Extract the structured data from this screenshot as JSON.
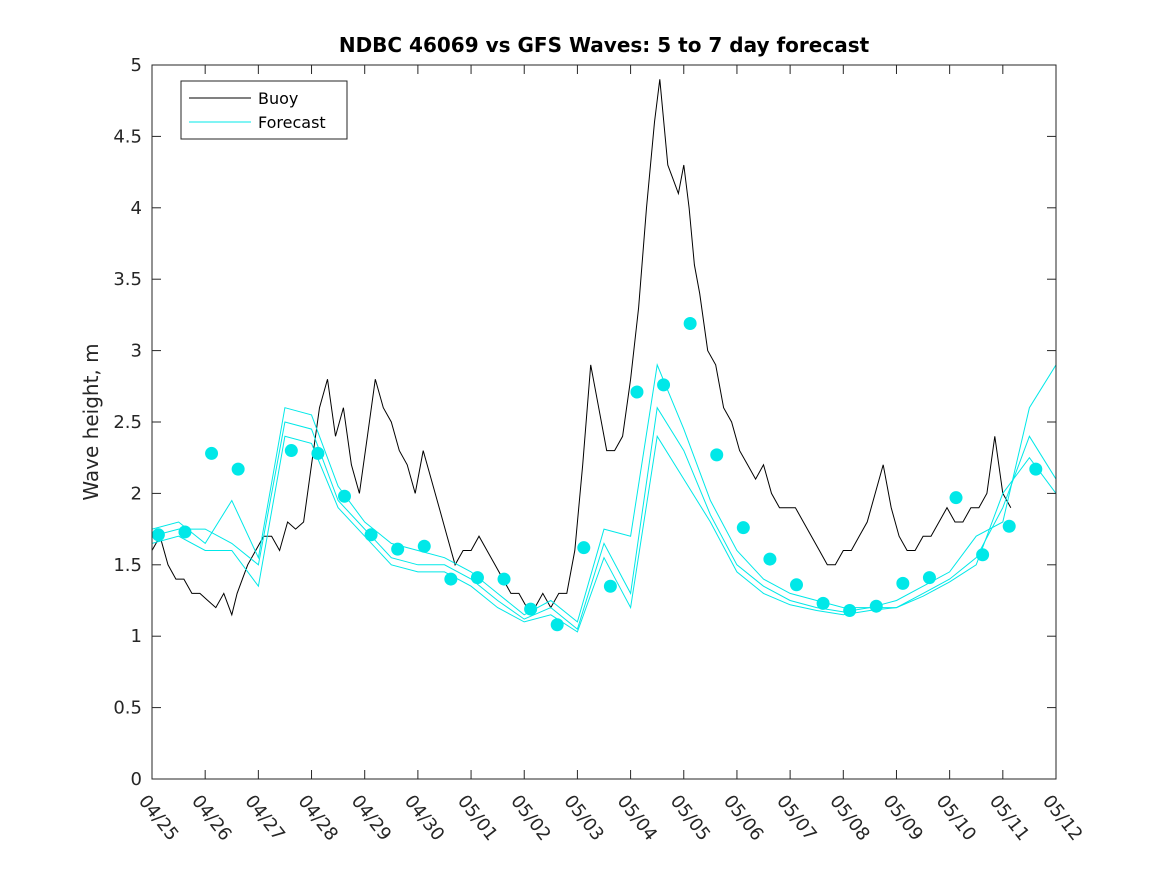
{
  "chart_data": {
    "type": "line",
    "title": "NDBC 46069 vs GFS Waves: 5 to 7 day forecast",
    "xlabel": "",
    "ylabel": "Wave height, m",
    "ylim": [
      0,
      5
    ],
    "yticks": [
      0,
      0.5,
      1,
      1.5,
      2,
      2.5,
      3,
      3.5,
      4,
      4.5,
      5
    ],
    "ytick_labels": [
      "0",
      "0.5",
      "1",
      "1.5",
      "2",
      "2.5",
      "3",
      "3.5",
      "4",
      "4.5",
      "5"
    ],
    "xlim": [
      0,
      17
    ],
    "x_units": "days since 04/25",
    "xtick_labels": [
      "04/25",
      "04/26",
      "04/27",
      "04/28",
      "04/29",
      "04/30",
      "05/01",
      "05/02",
      "05/03",
      "05/04",
      "05/05",
      "05/06",
      "05/07",
      "05/08",
      "05/09",
      "05/10",
      "05/11",
      "05/12"
    ],
    "grid": false,
    "legend": {
      "position": "top-left",
      "entries": [
        "Buoy",
        "Forecast"
      ]
    },
    "colors": {
      "buoy": "#000000",
      "forecast": "#00e8e8",
      "axes": "#262626"
    },
    "series": [
      {
        "name": "Buoy",
        "x": [
          0,
          0.15,
          0.3,
          0.45,
          0.6,
          0.75,
          0.9,
          1.05,
          1.2,
          1.35,
          1.5,
          1.6,
          1.7,
          1.8,
          1.95,
          2.1,
          2.25,
          2.4,
          2.55,
          2.7,
          2.85,
          3.0,
          3.15,
          3.3,
          3.45,
          3.6,
          3.75,
          3.9,
          4.05,
          4.2,
          4.35,
          4.5,
          4.65,
          4.8,
          4.95,
          5.1,
          5.25,
          5.4,
          5.55,
          5.7,
          5.85,
          6.0,
          6.15,
          6.3,
          6.45,
          6.6,
          6.75,
          6.9,
          7.05,
          7.2,
          7.35,
          7.5,
          7.65,
          7.8,
          7.95,
          8.1,
          8.25,
          8.4,
          8.55,
          8.7,
          8.85,
          9.0,
          9.15,
          9.3,
          9.45,
          9.55,
          9.7,
          9.8,
          9.9,
          10.0,
          10.1,
          10.2,
          10.3,
          10.45,
          10.6,
          10.75,
          10.9,
          11.05,
          11.2,
          11.35,
          11.5,
          11.65,
          11.8,
          11.95,
          12.1,
          12.25,
          12.4,
          12.55,
          12.7,
          12.85,
          13.0,
          13.15,
          13.3,
          13.45,
          13.6,
          13.75,
          13.9,
          14.05,
          14.2,
          14.35,
          14.5,
          14.65,
          14.8,
          14.95,
          15.1,
          15.25,
          15.4,
          15.55,
          15.7,
          15.85,
          16.0,
          16.15
        ],
        "y": [
          1.6,
          1.7,
          1.5,
          1.4,
          1.4,
          1.3,
          1.3,
          1.25,
          1.2,
          1.3,
          1.15,
          1.3,
          1.4,
          1.5,
          1.6,
          1.7,
          1.7,
          1.6,
          1.8,
          1.75,
          1.8,
          2.2,
          2.6,
          2.8,
          2.4,
          2.6,
          2.2,
          2.0,
          2.4,
          2.8,
          2.6,
          2.5,
          2.3,
          2.2,
          2.0,
          2.3,
          2.1,
          1.9,
          1.7,
          1.5,
          1.6,
          1.6,
          1.7,
          1.6,
          1.5,
          1.4,
          1.3,
          1.3,
          1.2,
          1.2,
          1.3,
          1.2,
          1.3,
          1.3,
          1.6,
          2.2,
          2.9,
          2.6,
          2.3,
          2.3,
          2.4,
          2.8,
          3.3,
          4.0,
          4.6,
          4.9,
          4.3,
          4.2,
          4.1,
          4.3,
          4.0,
          3.6,
          3.4,
          3.0,
          2.9,
          2.6,
          2.5,
          2.3,
          2.2,
          2.1,
          2.2,
          2.0,
          1.9,
          1.9,
          1.9,
          1.8,
          1.7,
          1.6,
          1.5,
          1.5,
          1.6,
          1.6,
          1.7,
          1.8,
          2.0,
          2.2,
          1.9,
          1.7,
          1.6,
          1.6,
          1.7,
          1.7,
          1.8,
          1.9,
          1.8,
          1.8,
          1.9,
          1.9,
          2.0,
          2.4,
          2.0,
          1.9
        ]
      },
      {
        "name": "Forecast",
        "x": [
          0,
          0.5,
          1,
          1.5,
          2,
          2.5,
          3,
          3.5,
          4,
          4.5,
          5,
          5.5,
          6,
          6.5,
          7,
          7.5,
          8,
          8.5,
          9,
          9.5,
          10,
          10.5,
          11,
          11.5,
          12,
          12.5,
          13,
          13.5,
          14,
          14.5,
          15,
          15.5,
          16,
          16.5,
          17
        ],
        "y": [
          1.75,
          1.8,
          1.65,
          1.95,
          1.55,
          2.6,
          2.55,
          2.05,
          1.8,
          1.65,
          1.6,
          1.55,
          1.45,
          1.3,
          1.15,
          1.25,
          1.1,
          1.75,
          1.7,
          2.9,
          2.45,
          1.95,
          1.6,
          1.4,
          1.3,
          1.25,
          1.2,
          1.2,
          1.25,
          1.35,
          1.45,
          1.7,
          1.8,
          2.6,
          2.9
        ]
      },
      {
        "name": "Forecast",
        "x": [
          0,
          0.5,
          1,
          1.5,
          2,
          2.5,
          3,
          3.5,
          4,
          4.5,
          5,
          5.5,
          6,
          6.5,
          7,
          7.5,
          8,
          8.5,
          9,
          9.5,
          10,
          10.5,
          11,
          11.5,
          12,
          12.5,
          13,
          13.5,
          14,
          14.5,
          15,
          15.5,
          16,
          16.5,
          17
        ],
        "y": [
          1.7,
          1.75,
          1.75,
          1.65,
          1.5,
          2.5,
          2.45,
          1.95,
          1.75,
          1.55,
          1.5,
          1.5,
          1.4,
          1.25,
          1.12,
          1.2,
          1.05,
          1.65,
          1.3,
          2.6,
          2.3,
          1.85,
          1.5,
          1.35,
          1.25,
          1.2,
          1.17,
          1.2,
          1.2,
          1.3,
          1.4,
          1.55,
          1.9,
          2.4,
          2.1
        ]
      },
      {
        "name": "Forecast",
        "x": [
          0,
          0.5,
          1,
          1.5,
          2,
          2.5,
          3,
          3.5,
          4,
          4.5,
          5,
          5.5,
          6,
          6.5,
          7,
          7.5,
          8,
          8.5,
          9,
          9.5,
          10,
          10.5,
          11,
          11.5,
          12,
          12.5,
          13,
          13.5,
          14,
          14.5,
          15,
          15.5,
          16,
          16.5,
          17
        ],
        "y": [
          1.65,
          1.7,
          1.6,
          1.6,
          1.35,
          2.4,
          2.35,
          1.9,
          1.7,
          1.5,
          1.45,
          1.45,
          1.35,
          1.2,
          1.1,
          1.15,
          1.03,
          1.55,
          1.2,
          2.4,
          2.1,
          1.8,
          1.45,
          1.3,
          1.22,
          1.18,
          1.15,
          1.18,
          1.2,
          1.28,
          1.38,
          1.5,
          2.0,
          2.25,
          2.0
        ]
      }
    ],
    "markers": {
      "name": "Forecast",
      "x": [
        0.12,
        0.62,
        1.12,
        1.62,
        2.62,
        3.12,
        3.62,
        4.12,
        4.62,
        5.12,
        5.62,
        6.12,
        6.62,
        7.12,
        7.62,
        8.12,
        8.62,
        9.12,
        9.62,
        10.12,
        10.62,
        11.12,
        11.62,
        12.12,
        12.62,
        13.12,
        13.62,
        14.12,
        14.62,
        15.12,
        15.62,
        16.12,
        16.62
      ],
      "y": [
        1.71,
        1.73,
        2.28,
        2.17,
        2.3,
        2.28,
        1.98,
        1.71,
        1.61,
        1.63,
        1.4,
        1.41,
        1.4,
        1.19,
        1.08,
        1.62,
        1.35,
        2.71,
        2.76,
        3.19,
        2.27,
        1.76,
        1.54,
        1.36,
        1.23,
        1.18,
        1.21,
        1.37,
        1.41,
        1.97,
        1.57,
        1.77,
        2.17
      ]
    }
  }
}
